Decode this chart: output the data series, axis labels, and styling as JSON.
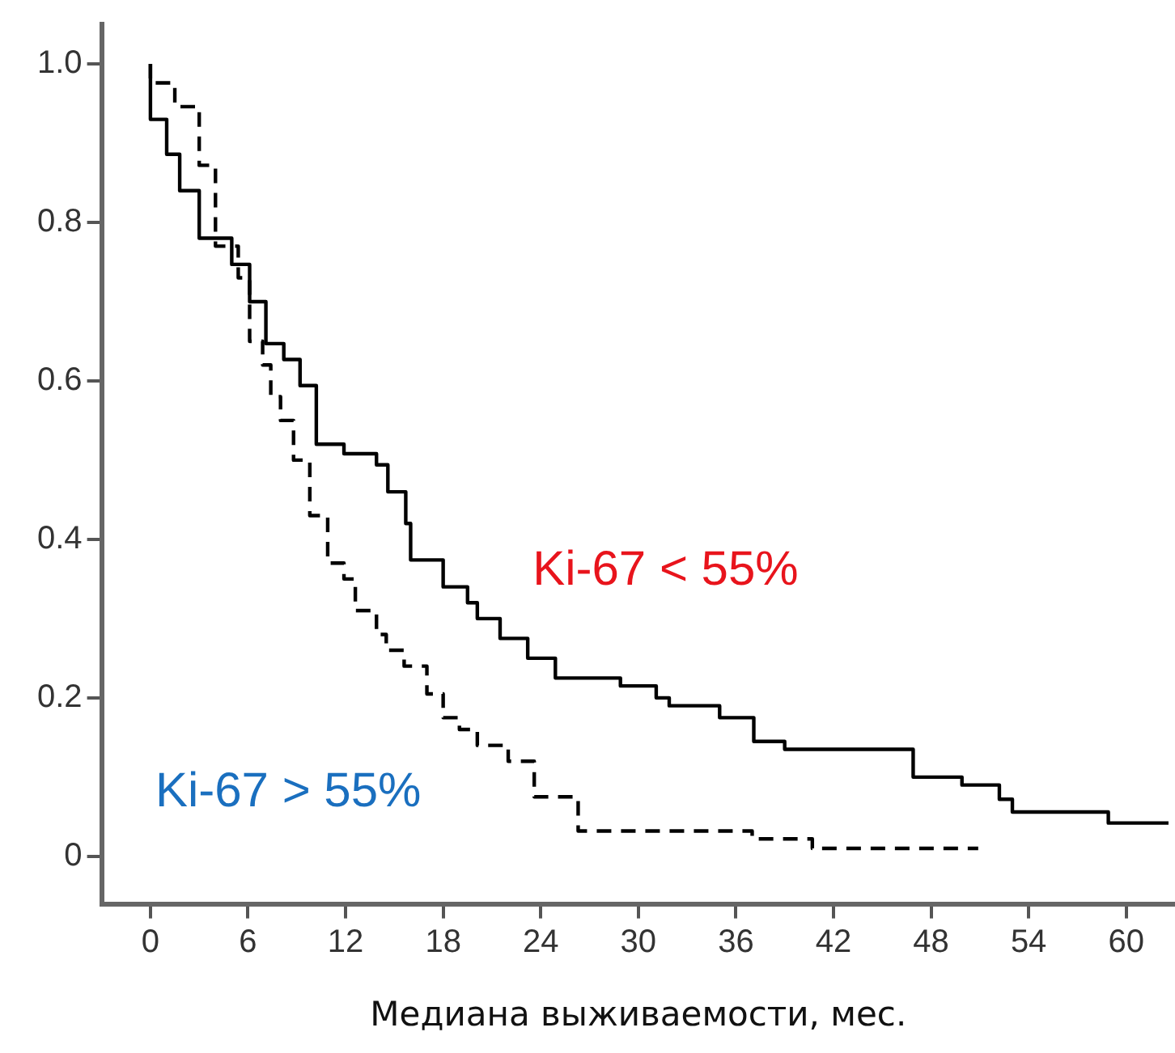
{
  "chart_data": {
    "type": "step",
    "xlabel": "Медиана выживаемости, мес.",
    "xlim": [
      -3,
      63
    ],
    "xticks": [
      0,
      6,
      12,
      18,
      24,
      30,
      36,
      42,
      48,
      54,
      60
    ],
    "ylim": [
      -0.06,
      1.05
    ],
    "yticks": [
      0,
      0.2,
      0.4,
      0.6,
      0.8,
      {
        "value": 1,
        "label": "1.0"
      }
    ],
    "grid": false,
    "legend": false,
    "marker": "none",
    "series": [
      {
        "name": "Ki-67 < 55%",
        "color": "#000000",
        "line_style": "solid",
        "x": [
          0,
          1,
          1.8,
          3,
          5,
          6.1,
          7.1,
          8.2,
          9.2,
          10.2,
          11.9,
          13.9,
          14.6,
          15.7,
          16,
          18,
          19.5,
          20.1,
          21.5,
          23.2,
          24.9,
          28.9,
          31.1,
          31.9,
          35,
          37.1,
          39,
          46.9,
          49.9,
          52.2,
          53,
          58.9,
          61.2,
          62.6
        ],
        "values": [
          1,
          0.93,
          0.886,
          0.84,
          0.78,
          0.747,
          0.7,
          0.647,
          0.627,
          0.594,
          0.52,
          0.508,
          0.494,
          0.46,
          0.42,
          0.374,
          0.34,
          0.32,
          0.3,
          0.275,
          0.25,
          0.225,
          0.215,
          0.2,
          0.19,
          0.175,
          0.145,
          0.135,
          0.1,
          0.09,
          0.072,
          0.056,
          0.042,
          0.042
        ]
      },
      {
        "name": "Ki-67 > 55%",
        "color": "#000000",
        "line_style": "dashed",
        "x": [
          0,
          1.5,
          3,
          4,
          5.4,
          6.1,
          6.9,
          7.4,
          8,
          8.8,
          9.8,
          10.9,
          11.9,
          12.6,
          13.9,
          14.5,
          15.6,
          17,
          18,
          19,
          20.1,
          22,
          23.6,
          26.3,
          37,
          40.7,
          42.7,
          50.9
        ],
        "values": [
          1,
          0.976,
          0.946,
          0.872,
          0.77,
          0.73,
          0.65,
          0.62,
          0.58,
          0.55,
          0.5,
          0.43,
          0.37,
          0.35,
          0.31,
          0.28,
          0.26,
          0.24,
          0.205,
          0.175,
          0.16,
          0.14,
          0.12,
          0.075,
          0.032,
          0.022,
          0.01,
          0.01
        ]
      }
    ]
  }
}
